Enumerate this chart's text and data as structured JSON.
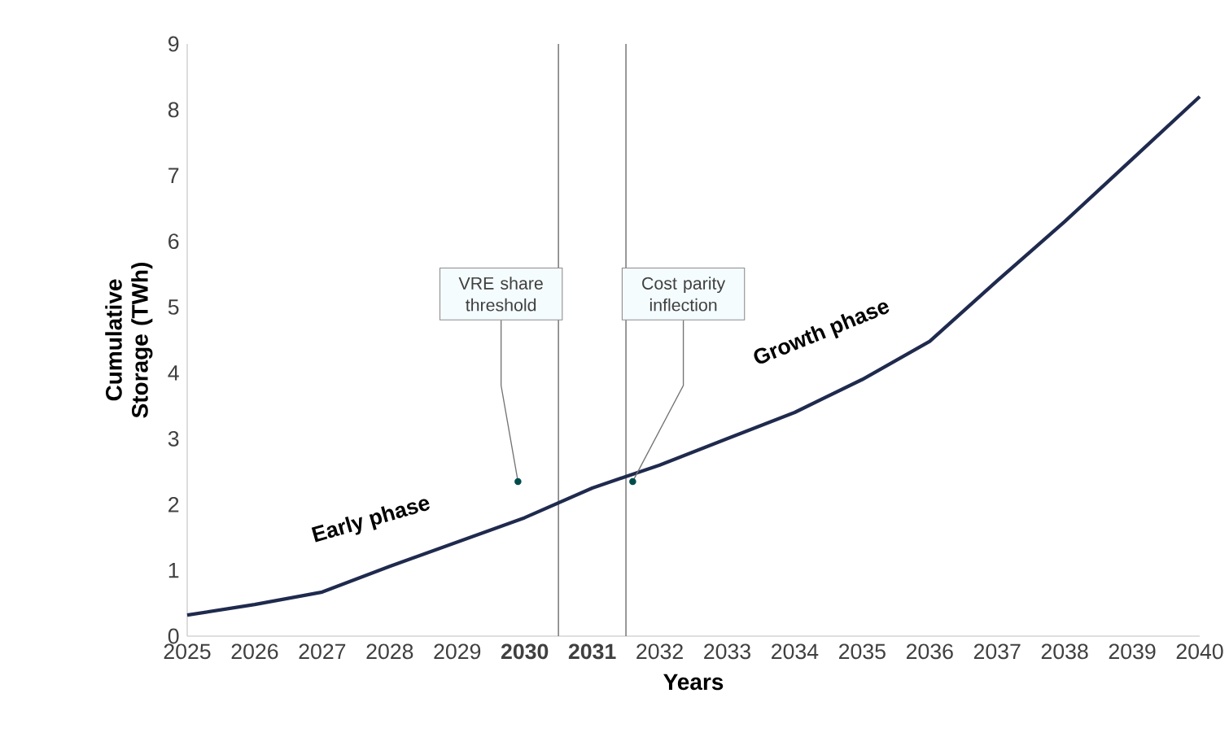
{
  "chart_data": {
    "type": "line",
    "xlabel": "Years",
    "ylabel": "Cumulative Storage (TWh)",
    "x": [
      2025,
      2026,
      2027,
      2028,
      2029,
      2030,
      2031,
      2032,
      2033,
      2034,
      2035,
      2036,
      2037,
      2038,
      2039,
      2040
    ],
    "series": [
      {
        "color": "#1f2a4e",
        "values": [
          0.32,
          0.48,
          0.67,
          1.06,
          1.43,
          1.8,
          2.25,
          2.6,
          3.0,
          3.4,
          3.9,
          4.48,
          5.4,
          6.3,
          7.25,
          8.2
        ]
      }
    ],
    "xlim": [
      2025,
      2040
    ],
    "ylim": [
      0,
      9
    ],
    "xticks": [
      2025,
      2026,
      2027,
      2028,
      2029,
      {
        "value": 2030,
        "label": "**2030**"
      },
      {
        "value": 2031,
        "label": "**2031**"
      },
      2032,
      2033,
      2034,
      2035,
      2036,
      2037,
      2038,
      2039,
      2040
    ],
    "yticks": [
      0,
      1,
      2,
      3,
      4,
      5,
      6,
      7,
      8,
      9
    ],
    "ref_lines": [
      {
        "axis": "x",
        "value": 2030.5,
        "label": "VRE share threshold",
        "color": "#7f7f7f"
      },
      {
        "axis": "x",
        "value": 2031.5,
        "label": "Cost parity inflection",
        "color": "#7f7f7f"
      }
    ],
    "annotations": [
      "Early phase",
      "Growth phase"
    ],
    "grid": false,
    "marker": "none",
    "line_style": "solid"
  }
}
